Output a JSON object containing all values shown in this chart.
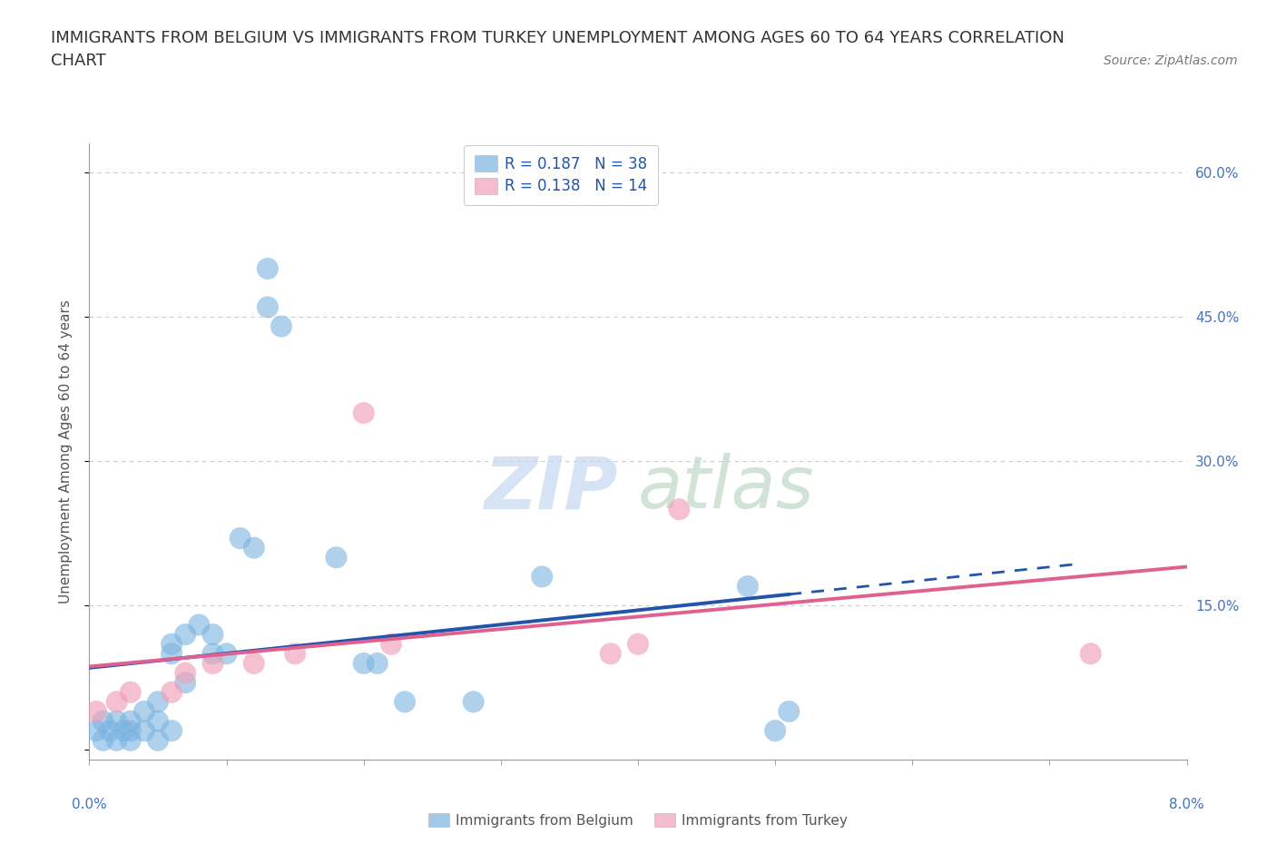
{
  "title": "IMMIGRANTS FROM BELGIUM VS IMMIGRANTS FROM TURKEY UNEMPLOYMENT AMONG AGES 60 TO 64 YEARS CORRELATION\nCHART",
  "source": "Source: ZipAtlas.com",
  "ylabel": "Unemployment Among Ages 60 to 64 years",
  "xlim": [
    0.0,
    0.08
  ],
  "ylim": [
    -0.01,
    0.63
  ],
  "belgium_color": "#7ab3e0",
  "turkey_color": "#f0a0b8",
  "belgium_line_color": "#2255aa",
  "turkey_line_color": "#e06090",
  "belgium_R": 0.187,
  "belgium_N": 38,
  "turkey_R": 0.138,
  "turkey_N": 14,
  "background_color": "#ffffff",
  "grid_color": "#cccccc",
  "tick_color": "#4472c4",
  "belgium_x": [
    0.0005,
    0.001,
    0.001,
    0.0015,
    0.002,
    0.002,
    0.0025,
    0.003,
    0.003,
    0.003,
    0.004,
    0.004,
    0.005,
    0.005,
    0.005,
    0.006,
    0.006,
    0.006,
    0.007,
    0.007,
    0.008,
    0.009,
    0.009,
    0.01,
    0.011,
    0.012,
    0.013,
    0.013,
    0.014,
    0.018,
    0.02,
    0.021,
    0.023,
    0.028,
    0.033,
    0.048,
    0.05,
    0.051
  ],
  "belgium_y": [
    0.02,
    0.01,
    0.03,
    0.02,
    0.01,
    0.03,
    0.02,
    0.01,
    0.02,
    0.03,
    0.02,
    0.04,
    0.01,
    0.03,
    0.05,
    0.02,
    0.1,
    0.11,
    0.07,
    0.12,
    0.13,
    0.1,
    0.12,
    0.1,
    0.22,
    0.21,
    0.5,
    0.46,
    0.44,
    0.2,
    0.09,
    0.09,
    0.05,
    0.05,
    0.18,
    0.17,
    0.02,
    0.04
  ],
  "turkey_x": [
    0.0005,
    0.002,
    0.003,
    0.006,
    0.007,
    0.009,
    0.012,
    0.015,
    0.02,
    0.022,
    0.038,
    0.04,
    0.043,
    0.073
  ],
  "turkey_y": [
    0.04,
    0.05,
    0.06,
    0.06,
    0.08,
    0.09,
    0.09,
    0.1,
    0.35,
    0.11,
    0.1,
    0.11,
    0.25,
    0.1
  ],
  "ytick_positions": [
    0.0,
    0.15,
    0.3,
    0.45,
    0.6
  ],
  "ytick_labels": [
    "",
    "15.0%",
    "30.0%",
    "45.0%",
    "60.0%"
  ]
}
